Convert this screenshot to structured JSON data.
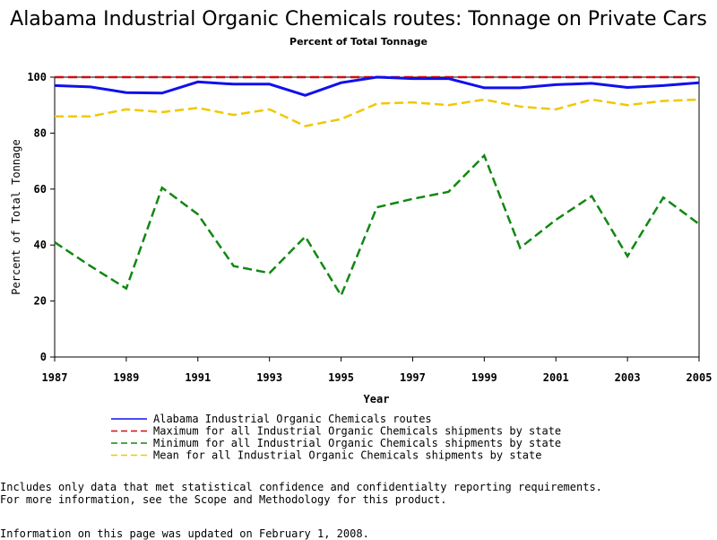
{
  "chart_data": {
    "type": "line",
    "title": "Alabama Industrial Organic Chemicals routes: Tonnage on Private Cars",
    "subtitle": "Percent of Total Tonnage",
    "xlabel": "Year",
    "ylabel": "Percent of Total Tonnage",
    "xlim": [
      1987,
      2005
    ],
    "ylim": [
      0,
      100
    ],
    "xticks": [
      "1987",
      "1989",
      "1991",
      "1993",
      "1995",
      "1997",
      "1999",
      "2001",
      "2003",
      "2005"
    ],
    "yticks": [
      "0",
      "20",
      "40",
      "60",
      "80",
      "100"
    ],
    "x": [
      1987,
      1988,
      1989,
      1990,
      1991,
      1992,
      1993,
      1994,
      1995,
      1996,
      1997,
      1998,
      1999,
      2000,
      2001,
      2002,
      2003,
      2004,
      2005
    ],
    "series": [
      {
        "name": "Alabama Industrial Organic Chemicals routes",
        "color": "#1010ee",
        "style": "solid",
        "values": [
          97,
          96.5,
          94.5,
          94.3,
          98.3,
          97.5,
          97.5,
          93.5,
          98,
          100,
          99.5,
          99.5,
          96.2,
          96.2,
          97.3,
          97.8,
          96.3,
          97,
          98
        ]
      },
      {
        "name": "Maximum for all Industrial Organic Chemicals shipments by state",
        "color": "#cc1111",
        "style": "dashed",
        "values": [
          100,
          100,
          100,
          100,
          100,
          100,
          100,
          100,
          100,
          100,
          100,
          100,
          100,
          100,
          100,
          100,
          100,
          100,
          100
        ]
      },
      {
        "name": "Minimum for all Industrial Organic Chemicals shipments by state",
        "color": "#118811",
        "style": "dashed",
        "values": [
          41,
          32.5,
          24.5,
          60.5,
          51,
          32.5,
          30,
          43,
          22,
          53.5,
          56.5,
          59,
          72,
          39,
          49,
          57.5,
          36,
          57,
          47.5
        ]
      },
      {
        "name": "Mean for all Industrial Organic Chemicals shipments by state",
        "color": "#f0c800",
        "style": "dashed",
        "values": [
          86,
          86,
          88.5,
          87.5,
          89,
          86.5,
          88.5,
          82.5,
          85,
          90.5,
          91,
          90,
          92,
          89.5,
          88.5,
          92,
          90,
          91.5,
          92
        ]
      }
    ]
  },
  "notes": {
    "line1": "Includes only data that met statistical confidence and confidentialty reporting requirements.",
    "line2": "For more information, see the Scope and Methodology for this product.",
    "updated": "Information on this page was updated on February 1, 2008."
  }
}
